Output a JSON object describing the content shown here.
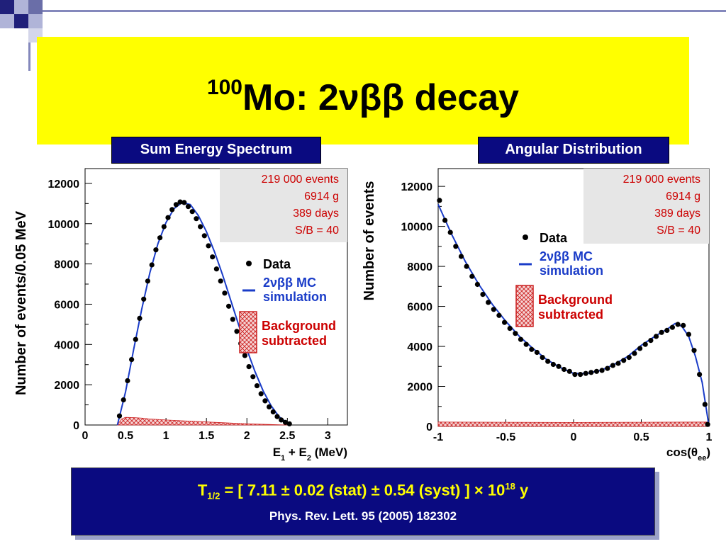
{
  "slide": {
    "title_sup": "100",
    "title_main": "Mo: 2νββ decay",
    "tab_left": "Sum Energy Spectrum",
    "tab_right": "Angular Distribution",
    "result_main": "T1/2 = [ 7.11 ± 0.02 (stat) ± 0.54 (syst) ] × 1018 y",
    "result_ref": "Phys. Rev. Lett. 95 (2005) 182302",
    "colors": {
      "title_band": "#ffff00",
      "tab_bg": "#0a0a80",
      "result_text": "#ffff00",
      "info_text": "#cc0000",
      "mc_line": "#1a3cc8",
      "background_hatch": "#cc2222"
    }
  },
  "chart_data": [
    {
      "type": "scatter",
      "xlabel": "E1 + E2 (MeV)",
      "ylabel": "Number of events/0.05 MeV",
      "xlim": [
        0,
        3.3
      ],
      "ylim": [
        0,
        12500
      ],
      "xticks": [
        "0",
        "0.5",
        "1",
        "1.5",
        "2",
        "2.5",
        "3"
      ],
      "yticks": [
        "0",
        "2000",
        "4000",
        "6000",
        "8000",
        "10000",
        "12000"
      ],
      "info": [
        "219 000 events",
        "6914 g",
        "389 days",
        "S/B = 40"
      ],
      "legend": {
        "data": "Data",
        "mc_line1": "2νββ MC",
        "mc_line2": "simulation",
        "bg_line1": "Background",
        "bg_line2": "subtracted"
      },
      "data_x": [
        0.425,
        0.475,
        0.525,
        0.575,
        0.625,
        0.675,
        0.725,
        0.775,
        0.825,
        0.875,
        0.925,
        0.975,
        1.025,
        1.075,
        1.125,
        1.175,
        1.225,
        1.275,
        1.325,
        1.375,
        1.425,
        1.475,
        1.525,
        1.575,
        1.625,
        1.675,
        1.725,
        1.775,
        1.825,
        1.875,
        1.925,
        1.975,
        2.025,
        2.075,
        2.125,
        2.175,
        2.225,
        2.275,
        2.325,
        2.375,
        2.425,
        2.475,
        2.525
      ],
      "data_y": [
        450,
        1250,
        2200,
        3250,
        4250,
        5300,
        6250,
        7150,
        7950,
        8700,
        9300,
        9850,
        10300,
        10700,
        10950,
        11080,
        11050,
        10850,
        10600,
        10250,
        9850,
        9400,
        8900,
        8350,
        7750,
        7150,
        6550,
        5900,
        5250,
        4650,
        4050,
        3450,
        2900,
        2400,
        1950,
        1550,
        1200,
        900,
        650,
        420,
        250,
        130,
        60
      ],
      "mc_x": [
        0.4,
        0.5,
        0.6,
        0.7,
        0.8,
        0.9,
        1.0,
        1.1,
        1.2,
        1.3,
        1.4,
        1.5,
        1.6,
        1.7,
        1.8,
        1.9,
        2.0,
        2.1,
        2.2,
        2.3,
        2.4,
        2.5,
        2.55
      ],
      "mc_y": [
        0,
        1650,
        3750,
        5750,
        7550,
        9000,
        10050,
        10750,
        11050,
        10950,
        10400,
        9600,
        8600,
        7450,
        6200,
        4950,
        3750,
        2650,
        1700,
        950,
        400,
        100,
        0
      ],
      "bg_x": [
        0.4,
        0.45,
        0.5,
        0.6,
        0.7,
        0.8,
        1.0,
        1.5,
        2.0,
        2.5
      ],
      "bg_y": [
        0,
        300,
        380,
        370,
        340,
        300,
        250,
        150,
        60,
        0
      ]
    },
    {
      "type": "scatter",
      "xlabel": "cos(θee)",
      "ylabel": "Number of events",
      "xlim": [
        -1,
        1
      ],
      "ylim": [
        0,
        12500
      ],
      "xticks": [
        "-1",
        "-0.5",
        "0",
        "0.5",
        "1"
      ],
      "yticks": [
        "0",
        "2000",
        "4000",
        "6000",
        "8000",
        "10000",
        "12000"
      ],
      "info": [
        "219 000 events",
        "6914 g",
        "389 days",
        "S/B = 40"
      ],
      "legend": {
        "data": "Data",
        "mc_line1": "2νββ MC",
        "mc_line2": "simulation",
        "bg_line1": "Background",
        "bg_line2": "subtracted"
      },
      "data_x": [
        -0.99,
        -0.95,
        -0.91,
        -0.87,
        -0.83,
        -0.79,
        -0.75,
        -0.71,
        -0.67,
        -0.63,
        -0.59,
        -0.55,
        -0.51,
        -0.47,
        -0.43,
        -0.39,
        -0.35,
        -0.31,
        -0.27,
        -0.23,
        -0.19,
        -0.15,
        -0.11,
        -0.07,
        -0.03,
        0.01,
        0.05,
        0.09,
        0.13,
        0.17,
        0.21,
        0.25,
        0.29,
        0.33,
        0.37,
        0.41,
        0.45,
        0.49,
        0.53,
        0.57,
        0.61,
        0.65,
        0.69,
        0.73,
        0.77,
        0.81,
        0.85,
        0.89,
        0.93,
        0.97,
        0.99
      ],
      "data_y": [
        11300,
        10300,
        9700,
        9000,
        8500,
        8000,
        7500,
        7100,
        6600,
        6200,
        5850,
        5550,
        5200,
        4900,
        4650,
        4350,
        4100,
        3850,
        3700,
        3450,
        3250,
        3100,
        3000,
        2850,
        2750,
        2600,
        2600,
        2650,
        2700,
        2750,
        2800,
        2900,
        3050,
        3150,
        3300,
        3450,
        3650,
        3900,
        4100,
        4300,
        4500,
        4700,
        4800,
        4950,
        5100,
        5050,
        4600,
        3800,
        2600,
        1100,
        100
      ],
      "mc_x": [
        -1,
        -0.9,
        -0.8,
        -0.7,
        -0.6,
        -0.5,
        -0.4,
        -0.3,
        -0.2,
        -0.1,
        0,
        0.1,
        0.2,
        0.3,
        0.4,
        0.5,
        0.6,
        0.7,
        0.75,
        0.8,
        0.85,
        0.9,
        0.95,
        1.0
      ],
      "mc_y": [
        11100,
        9600,
        8250,
        7100,
        6100,
        5250,
        4500,
        3900,
        3350,
        2950,
        2650,
        2650,
        2800,
        3100,
        3500,
        4050,
        4500,
        4900,
        5150,
        5000,
        4500,
        3500,
        2200,
        0
      ],
      "bg_x": [
        -1,
        -0.5,
        0,
        0.5,
        1
      ],
      "bg_y": [
        220,
        210,
        200,
        210,
        220
      ]
    }
  ]
}
